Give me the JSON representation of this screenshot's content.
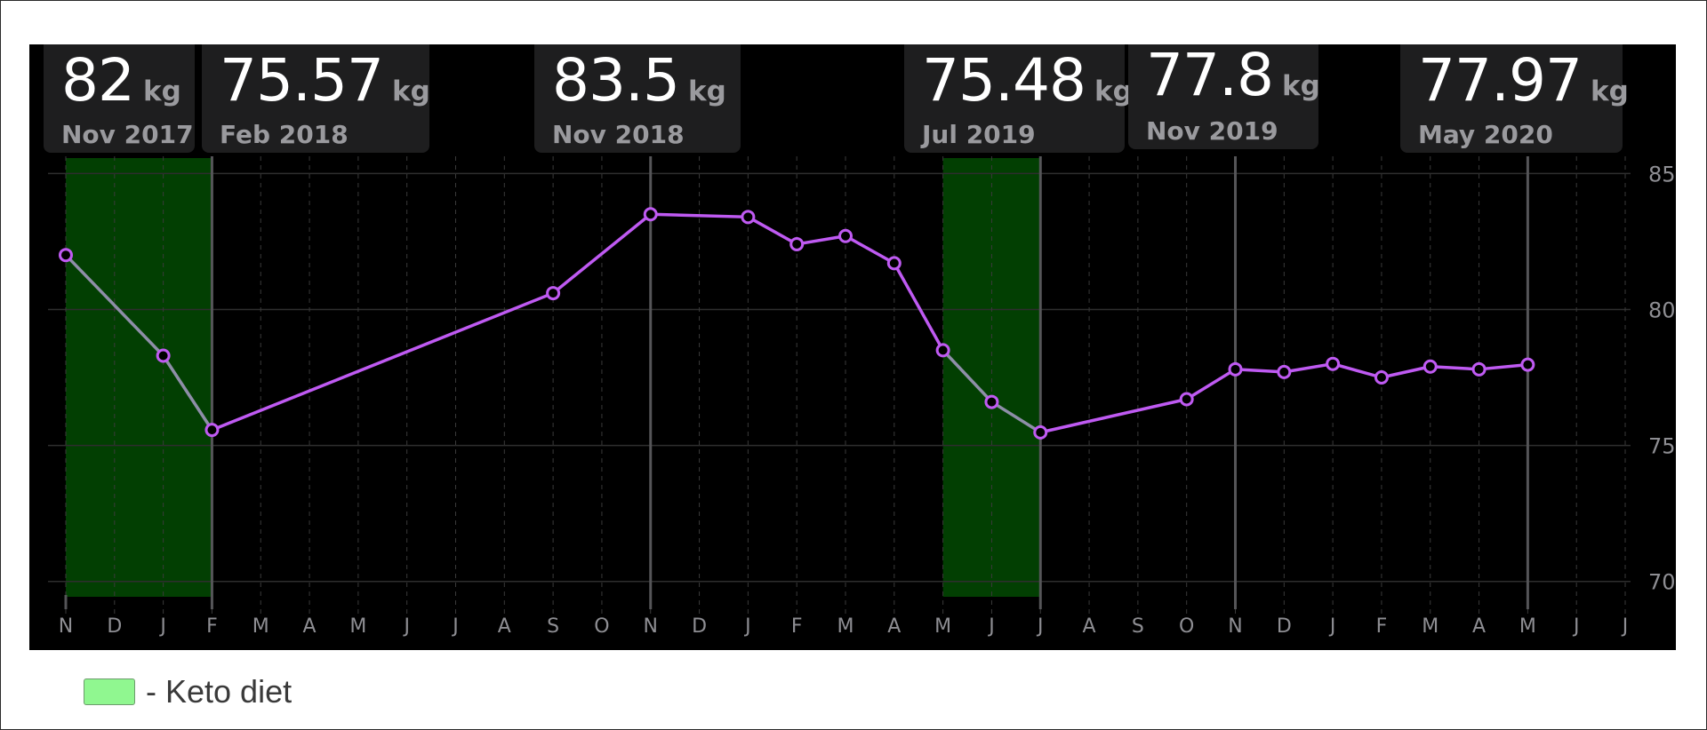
{
  "callouts": [
    {
      "value": "82",
      "unit": "kg",
      "date": "Nov 2017"
    },
    {
      "value": "75.57",
      "unit": "kg",
      "date": "Feb 2018"
    },
    {
      "value": "83.5",
      "unit": "kg",
      "date": "Nov 2018"
    },
    {
      "value": "75.48",
      "unit": "kg",
      "date": "Jul 2019"
    },
    {
      "value": "77.8",
      "unit": "kg",
      "date": "Nov 2019"
    },
    {
      "value": "77.97",
      "unit": "kg",
      "date": "May 2020"
    }
  ],
  "legend": {
    "label": "- Keto diet",
    "swatch_color": "#90f790"
  },
  "colors": {
    "line": "#bf5af2",
    "line_keto": "#8e8ea8",
    "keto_band": "#023f02",
    "background": "#000000"
  },
  "chart_data": {
    "type": "line",
    "title": "",
    "xlabel": "",
    "ylabel": "",
    "x_tick_labels": [
      "N",
      "D",
      "J",
      "F",
      "M",
      "A",
      "M",
      "J",
      "J",
      "A",
      "S",
      "O",
      "N",
      "D",
      "J",
      "F",
      "M",
      "A",
      "M",
      "J",
      "J",
      "A",
      "S",
      "O",
      "N",
      "D",
      "J",
      "F",
      "M",
      "A",
      "M",
      "J",
      "J"
    ],
    "x_range": [
      "2017-11",
      "2020-07"
    ],
    "y_ticks": [
      70,
      75,
      80,
      85
    ],
    "ylim": [
      69.5,
      85.5
    ],
    "y_axis_side": "right",
    "grid": true,
    "series": [
      {
        "points": [
          {
            "x": "2017-11",
            "y": 82
          },
          {
            "x": "2018-01",
            "y": 78.3
          },
          {
            "x": "2018-02",
            "y": 75.57
          },
          {
            "x": "2018-09",
            "y": 80.6
          },
          {
            "x": "2018-11",
            "y": 83.5
          },
          {
            "x": "2019-01",
            "y": 83.4
          },
          {
            "x": "2019-02",
            "y": 82.4
          },
          {
            "x": "2019-03",
            "y": 82.7
          },
          {
            "x": "2019-04",
            "y": 81.7
          },
          {
            "x": "2019-05",
            "y": 78.5
          },
          {
            "x": "2019-06",
            "y": 76.6
          },
          {
            "x": "2019-07",
            "y": 75.48
          },
          {
            "x": "2019-10",
            "y": 76.7
          },
          {
            "x": "2019-11",
            "y": 77.8
          },
          {
            "x": "2019-12",
            "y": 77.7
          },
          {
            "x": "2020-01",
            "y": 78.0
          },
          {
            "x": "2020-02",
            "y": 77.5
          },
          {
            "x": "2020-03",
            "y": 77.9
          },
          {
            "x": "2020-04",
            "y": 77.8
          },
          {
            "x": "2020-05",
            "y": 77.97
          }
        ]
      }
    ],
    "highlight_bands": [
      {
        "label": "Keto diet",
        "start": "2017-11",
        "end": "2018-02"
      },
      {
        "label": "Keto diet",
        "start": "2019-05",
        "end": "2019-07"
      }
    ],
    "marker_lines": [
      "2018-02",
      "2018-11",
      "2019-07",
      "2019-11",
      "2020-05"
    ]
  }
}
